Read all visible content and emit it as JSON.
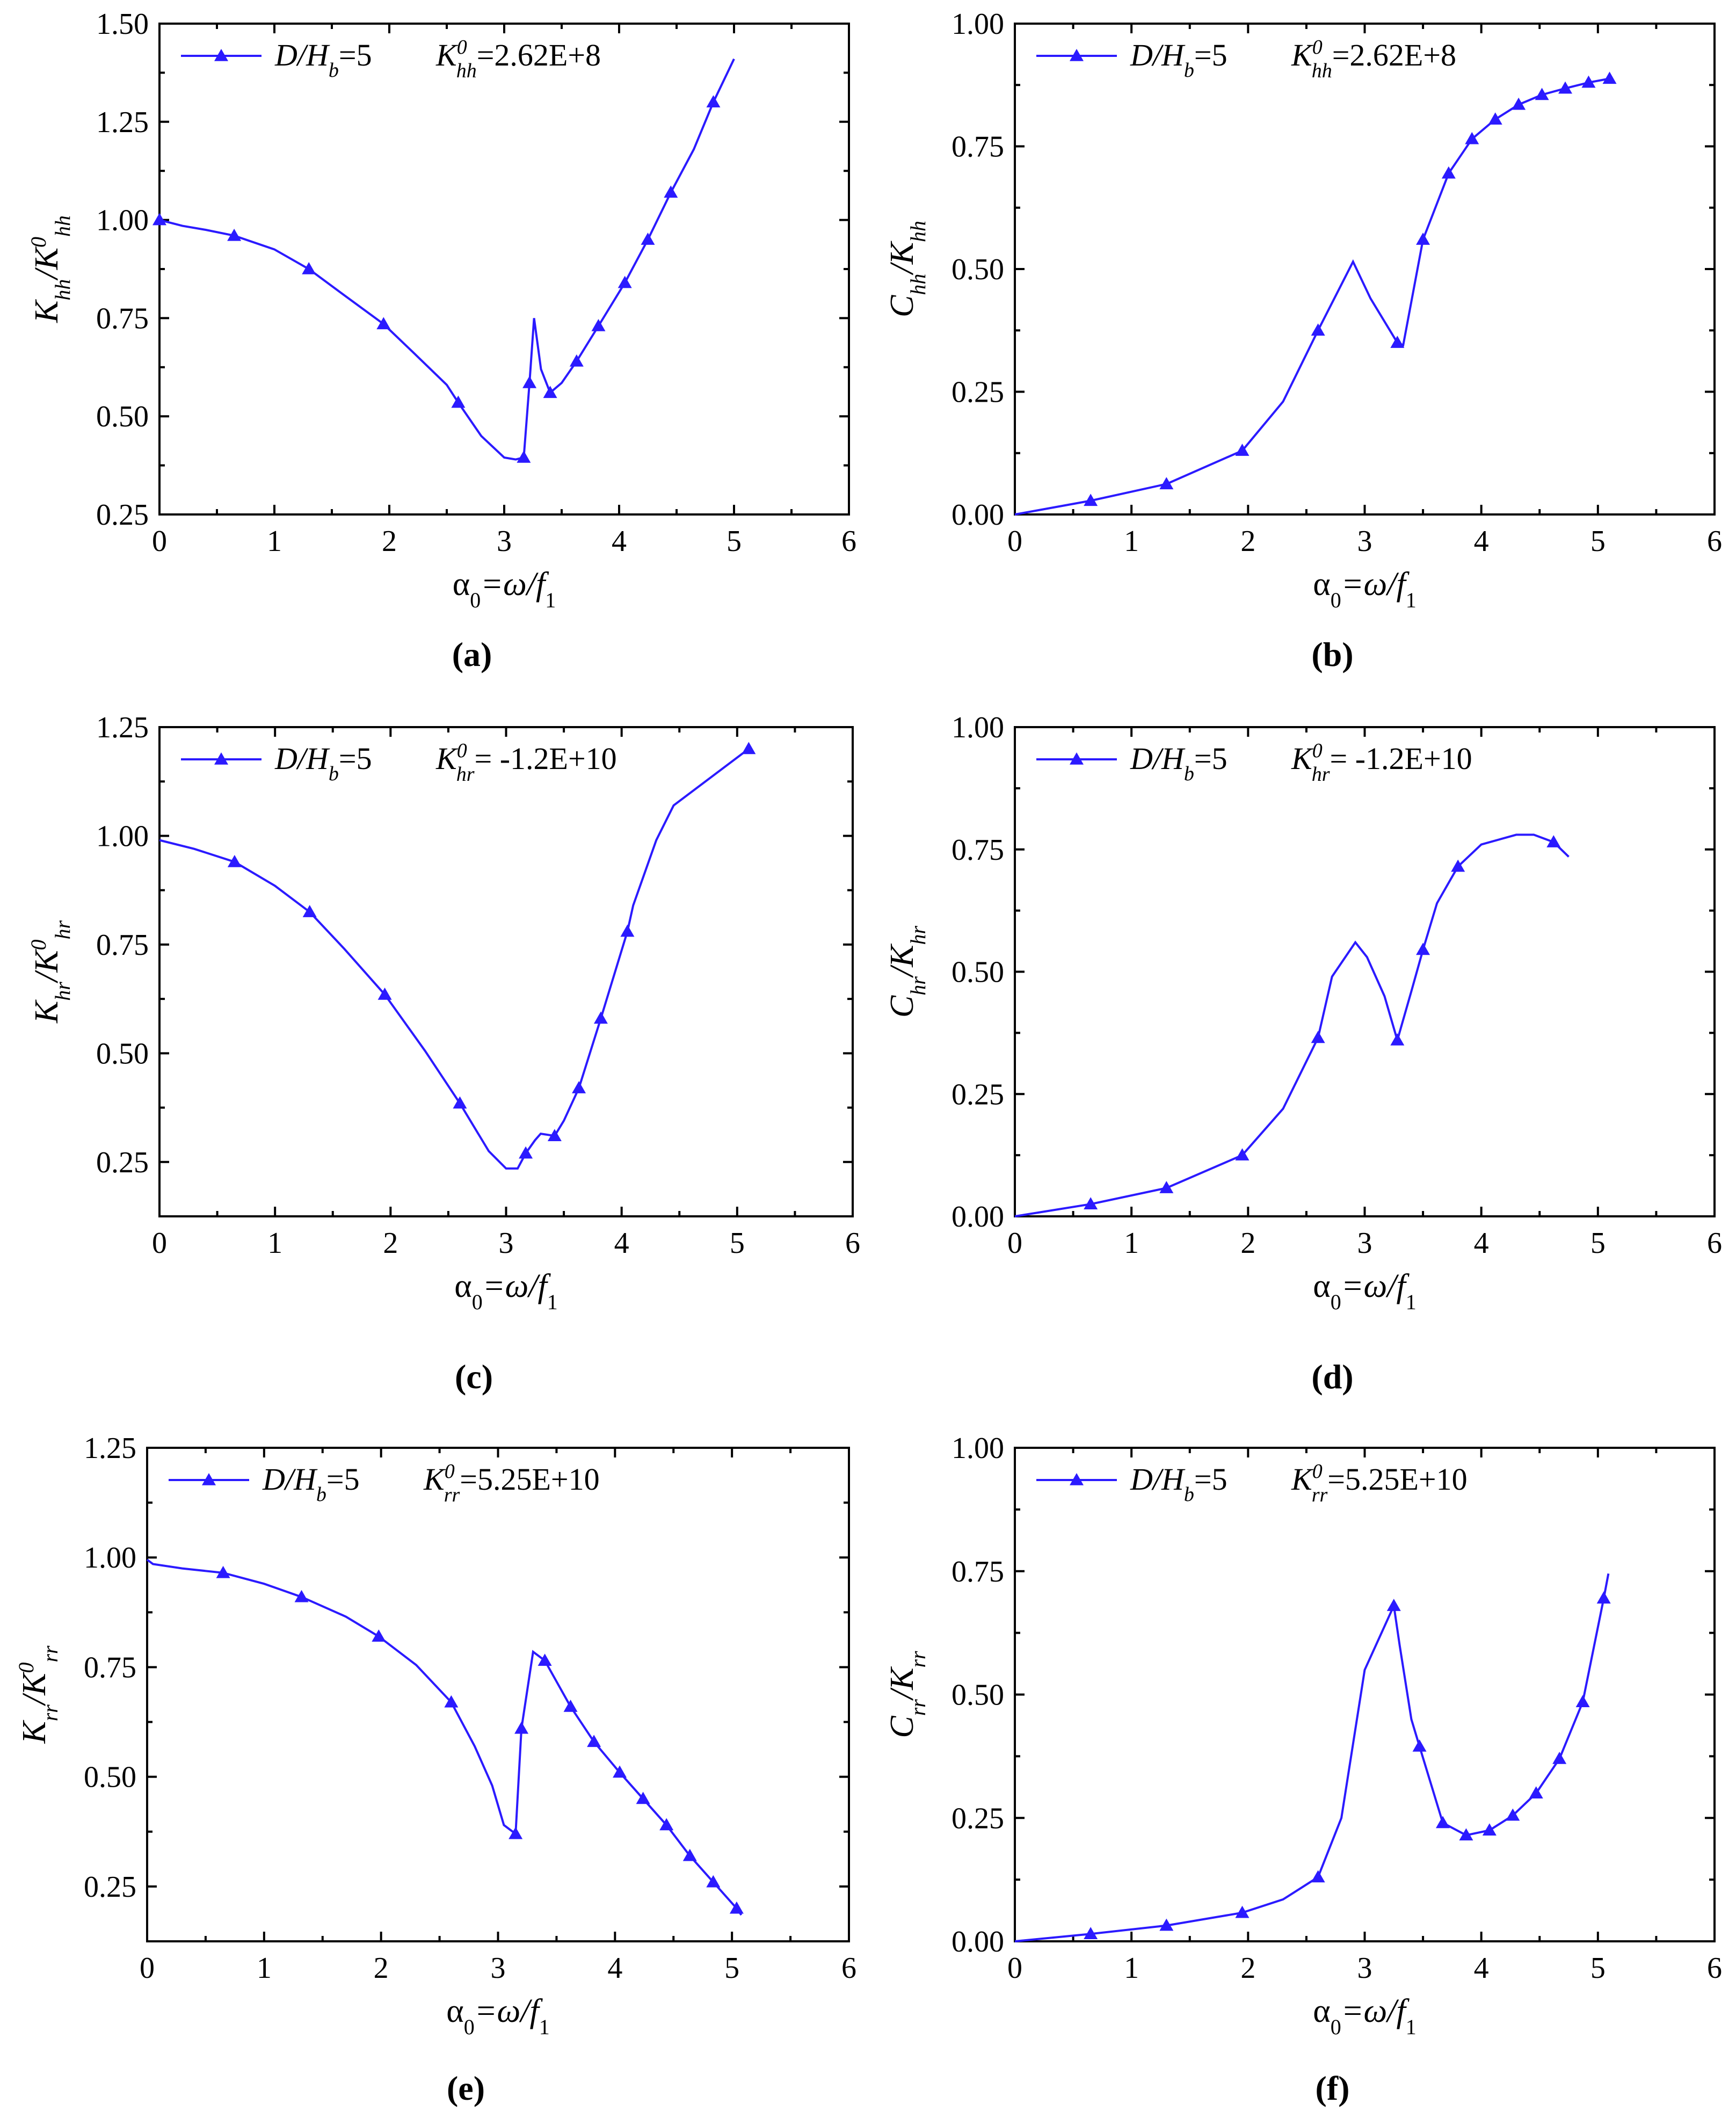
{
  "chart_data": [
    {
      "panel": "a",
      "caption": "(a)",
      "type": "line",
      "color": "#2b1aff",
      "ylabel": {
        "base": "K",
        "sub1": "hh",
        "mid": "/K",
        "sup": "0",
        "sub2": "hh"
      },
      "xlabel": {
        "base": "α",
        "sub0": "0",
        "mid": "=ω/",
        "f": "f",
        "sub1": "1"
      },
      "legend": {
        "series": "D/H",
        "series_sub": "b",
        "series_val": "=5",
        "k": "K",
        "k_sup": "0",
        "k_sub": "hh",
        "k_val": "=2.62E+8"
      },
      "xlim": [
        0,
        6
      ],
      "ylim": [
        0.25,
        1.5
      ],
      "xticks": [
        "0",
        "1",
        "2",
        "3",
        "4",
        "5",
        "6"
      ],
      "yticks": [
        "0.25",
        "0.50",
        "0.75",
        "1.00",
        "1.25",
        "1.50"
      ],
      "x": [
        0,
        0.2,
        0.4,
        0.65,
        1.0,
        1.3,
        1.6,
        1.95,
        2.2,
        2.5,
        2.6,
        2.8,
        3.0,
        3.1,
        3.17,
        3.22,
        3.26,
        3.32,
        3.4,
        3.5,
        3.63,
        3.82,
        4.05,
        4.25,
        4.45,
        4.65,
        4.82,
        5.0
      ],
      "y": [
        1.0,
        0.985,
        0.975,
        0.96,
        0.925,
        0.875,
        0.81,
        0.735,
        0.665,
        0.58,
        0.535,
        0.45,
        0.395,
        0.39,
        0.395,
        0.585,
        0.75,
        0.62,
        0.56,
        0.585,
        0.64,
        0.73,
        0.84,
        0.95,
        1.07,
        1.18,
        1.3,
        1.41
      ],
      "markers": [
        [
          0,
          1.0
        ],
        [
          0.65,
          0.96
        ],
        [
          1.3,
          0.875
        ],
        [
          1.95,
          0.735
        ],
        [
          2.6,
          0.535
        ],
        [
          3.17,
          0.395
        ],
        [
          3.22,
          0.585
        ],
        [
          3.4,
          0.56
        ],
        [
          3.63,
          0.64
        ],
        [
          3.82,
          0.73
        ],
        [
          4.05,
          0.84
        ],
        [
          4.25,
          0.95
        ],
        [
          4.45,
          1.07
        ],
        [
          4.82,
          1.3
        ]
      ]
    },
    {
      "panel": "b",
      "caption": "(b)",
      "type": "line",
      "color": "#2b1aff",
      "ylabel": {
        "base": "C",
        "sub1": "hh",
        "mid": "/K",
        "sup": "",
        "sub2": "hh"
      },
      "xlabel": {
        "base": "α",
        "sub0": "0",
        "mid": "=ω/",
        "f": "f",
        "sub1": "1"
      },
      "legend": {
        "series": "D/H",
        "series_sub": "b",
        "series_val": "=5",
        "k": "K",
        "k_sup": "0",
        "k_sub": "hh",
        "k_val": "=2.62E+8"
      },
      "xlim": [
        0,
        6
      ],
      "ylim": [
        0,
        1.0
      ],
      "xticks": [
        "0",
        "1",
        "2",
        "3",
        "4",
        "5",
        "6"
      ],
      "yticks": [
        "0.00",
        "0.25",
        "0.50",
        "0.75",
        "1.00"
      ],
      "x": [
        0,
        0.65,
        1.3,
        1.95,
        2.3,
        2.6,
        2.9,
        3.05,
        3.28,
        3.33,
        3.5,
        3.72,
        3.92,
        4.12,
        4.32,
        4.52,
        4.72,
        4.92,
        5.1
      ],
      "y": [
        0,
        0.028,
        0.062,
        0.13,
        0.23,
        0.375,
        0.515,
        0.44,
        0.35,
        0.345,
        0.56,
        0.695,
        0.765,
        0.805,
        0.835,
        0.855,
        0.868,
        0.88,
        0.888
      ],
      "markers": [
        [
          0.65,
          0.028
        ],
        [
          1.3,
          0.062
        ],
        [
          1.95,
          0.13
        ],
        [
          2.6,
          0.375
        ],
        [
          3.28,
          0.35
        ],
        [
          3.5,
          0.56
        ],
        [
          3.72,
          0.695
        ],
        [
          3.92,
          0.765
        ],
        [
          4.12,
          0.805
        ],
        [
          4.32,
          0.835
        ],
        [
          4.52,
          0.855
        ],
        [
          4.72,
          0.868
        ],
        [
          4.92,
          0.88
        ],
        [
          5.1,
          0.888
        ]
      ]
    },
    {
      "panel": "c",
      "caption": "(c)",
      "type": "line",
      "color": "#2b1aff",
      "ylabel": {
        "base": "K",
        "sub1": "hr",
        "mid": "/K",
        "sup": "0",
        "sub2": "hr"
      },
      "xlabel": {
        "base": "α",
        "sub0": "0",
        "mid": "=ω/",
        "f": "f",
        "sub1": "1"
      },
      "legend": {
        "series": "D/H",
        "series_sub": "b",
        "series_val": "=5",
        "k": "K",
        "k_sup": "0",
        "k_sub": "hr",
        "k_val": "= -1.2E+10"
      },
      "xlim": [
        0,
        6
      ],
      "ylim": [
        0.125,
        1.25
      ],
      "xticks": [
        "0",
        "1",
        "2",
        "3",
        "4",
        "5",
        "6"
      ],
      "yticks": [
        "0.25",
        "0.50",
        "0.75",
        "1.00",
        "1.25"
      ],
      "x": [
        0,
        0.3,
        0.65,
        1.0,
        1.3,
        1.6,
        1.95,
        2.3,
        2.6,
        2.85,
        3.0,
        3.1,
        3.17,
        3.25,
        3.3,
        3.42,
        3.5,
        3.63,
        3.82,
        4.05,
        4.1,
        4.3,
        4.45,
        5.1
      ],
      "y": [
        0.99,
        0.97,
        0.94,
        0.885,
        0.825,
        0.74,
        0.635,
        0.505,
        0.385,
        0.275,
        0.235,
        0.235,
        0.27,
        0.3,
        0.315,
        0.31,
        0.345,
        0.42,
        0.58,
        0.78,
        0.84,
        0.99,
        1.07,
        1.2
      ],
      "markers": [
        [
          0.65,
          0.94
        ],
        [
          1.3,
          0.825
        ],
        [
          1.95,
          0.635
        ],
        [
          2.6,
          0.385
        ],
        [
          3.17,
          0.27
        ],
        [
          3.42,
          0.31
        ],
        [
          3.63,
          0.42
        ],
        [
          3.82,
          0.58
        ],
        [
          4.05,
          0.78
        ],
        [
          5.1,
          1.2
        ]
      ]
    },
    {
      "panel": "d",
      "caption": "(d)",
      "type": "line",
      "color": "#2b1aff",
      "ylabel": {
        "base": "C",
        "sub1": "hr",
        "mid": "/K",
        "sup": "",
        "sub2": "hr"
      },
      "xlabel": {
        "base": "α",
        "sub0": "0",
        "mid": "=ω/",
        "f": "f",
        "sub1": "1"
      },
      "legend": {
        "series": "D/H",
        "series_sub": "b",
        "series_val": "=5",
        "k": "K",
        "k_sup": "0",
        "k_sub": "hr",
        "k_val": "= -1.2E+10"
      },
      "xlim": [
        0,
        6
      ],
      "ylim": [
        0,
        1.0
      ],
      "xticks": [
        "0",
        "1",
        "2",
        "3",
        "4",
        "5",
        "6"
      ],
      "yticks": [
        "0.00",
        "0.25",
        "0.50",
        "0.75",
        "1.00"
      ],
      "x": [
        0,
        0.65,
        1.3,
        1.95,
        2.3,
        2.6,
        2.72,
        2.92,
        3.02,
        3.17,
        3.28,
        3.4,
        3.5,
        3.62,
        3.8,
        4.0,
        4.3,
        4.45,
        4.62,
        4.75
      ],
      "y": [
        0,
        0.025,
        0.058,
        0.125,
        0.22,
        0.365,
        0.49,
        0.56,
        0.53,
        0.45,
        0.36,
        0.46,
        0.545,
        0.64,
        0.715,
        0.76,
        0.78,
        0.78,
        0.765,
        0.735
      ],
      "markers": [
        [
          0.65,
          0.025
        ],
        [
          1.3,
          0.058
        ],
        [
          1.95,
          0.125
        ],
        [
          2.6,
          0.365
        ],
        [
          3.28,
          0.36
        ],
        [
          3.5,
          0.545
        ],
        [
          3.8,
          0.715
        ],
        [
          4.62,
          0.765
        ]
      ]
    },
    {
      "panel": "e",
      "caption": "(e)",
      "type": "line",
      "color": "#2b1aff",
      "ylabel": {
        "base": "K",
        "sub1": "rr",
        "mid": "/K",
        "sup": "0",
        "sub2": "rr"
      },
      "xlabel": {
        "base": "α",
        "sub0": "0",
        "mid": "=ω/",
        "f": "f",
        "sub1": "1"
      },
      "legend": {
        "series": "D/H",
        "series_sub": "b",
        "series_val": "=5",
        "k": "K",
        "k_sup": "0",
        "k_sub": "rr",
        "k_val": "=5.25E+10"
      },
      "xlim": [
        0,
        6
      ],
      "ylim": [
        0.125,
        1.25
      ],
      "xticks": [
        "0",
        "1",
        "2",
        "3",
        "4",
        "5",
        "6"
      ],
      "yticks": [
        "0.25",
        "0.50",
        "0.75",
        "1.00",
        "1.25"
      ],
      "x": [
        0,
        0.05,
        0.3,
        0.65,
        1.0,
        1.32,
        1.7,
        1.98,
        2.3,
        2.6,
        2.8,
        2.95,
        3.05,
        3.15,
        3.2,
        3.3,
        3.4,
        3.62,
        3.82,
        4.04,
        4.24,
        4.44,
        4.64,
        4.84,
        5.04,
        5.08
      ],
      "y": [
        0.995,
        0.985,
        0.975,
        0.965,
        0.94,
        0.91,
        0.865,
        0.82,
        0.755,
        0.67,
        0.57,
        0.48,
        0.39,
        0.37,
        0.61,
        0.785,
        0.765,
        0.66,
        0.58,
        0.51,
        0.45,
        0.39,
        0.32,
        0.26,
        0.2,
        0.185
      ],
      "markers": [
        [
          0.65,
          0.965
        ],
        [
          1.32,
          0.91
        ],
        [
          1.98,
          0.82
        ],
        [
          2.6,
          0.67
        ],
        [
          3.15,
          0.37
        ],
        [
          3.2,
          0.61
        ],
        [
          3.4,
          0.765
        ],
        [
          3.62,
          0.66
        ],
        [
          3.82,
          0.58
        ],
        [
          4.04,
          0.51
        ],
        [
          4.24,
          0.45
        ],
        [
          4.44,
          0.39
        ],
        [
          4.64,
          0.32
        ],
        [
          4.84,
          0.26
        ],
        [
          5.04,
          0.2
        ]
      ]
    },
    {
      "panel": "f",
      "caption": "(f)",
      "type": "line",
      "color": "#2b1aff",
      "ylabel": {
        "base": "C",
        "sub1": "rr",
        "mid": "/K",
        "sup": "",
        "sub2": "rr"
      },
      "xlabel": {
        "base": "α",
        "sub0": "0",
        "mid": "=ω/",
        "f": "f",
        "sub1": "1"
      },
      "legend": {
        "series": "D/H",
        "series_sub": "b",
        "series_val": "=5",
        "k": "K",
        "k_sup": "0",
        "k_sub": "rr",
        "k_val": "=5.25E+10"
      },
      "xlim": [
        0,
        6
      ],
      "ylim": [
        0,
        1.0
      ],
      "xticks": [
        "0",
        "1",
        "2",
        "3",
        "4",
        "5",
        "6"
      ],
      "yticks": [
        "0.00",
        "0.25",
        "0.50",
        "0.75",
        "1.00"
      ],
      "x": [
        0,
        0.65,
        1.3,
        1.95,
        2.3,
        2.6,
        2.8,
        3.0,
        3.25,
        3.3,
        3.4,
        3.47,
        3.67,
        3.87,
        4.07,
        4.27,
        4.47,
        4.67,
        4.87,
        5.05,
        5.09
      ],
      "y": [
        0,
        0.015,
        0.032,
        0.058,
        0.085,
        0.13,
        0.25,
        0.55,
        0.68,
        0.6,
        0.45,
        0.395,
        0.24,
        0.215,
        0.225,
        0.255,
        0.3,
        0.37,
        0.485,
        0.695,
        0.745
      ],
      "markers": [
        [
          0.65,
          0.015
        ],
        [
          1.3,
          0.032
        ],
        [
          1.95,
          0.058
        ],
        [
          2.6,
          0.13
        ],
        [
          3.25,
          0.68
        ],
        [
          3.47,
          0.395
        ],
        [
          3.67,
          0.24
        ],
        [
          3.87,
          0.215
        ],
        [
          4.07,
          0.225
        ],
        [
          4.27,
          0.255
        ],
        [
          4.47,
          0.3
        ],
        [
          4.67,
          0.37
        ],
        [
          4.87,
          0.485
        ],
        [
          5.05,
          0.695
        ]
      ]
    }
  ]
}
